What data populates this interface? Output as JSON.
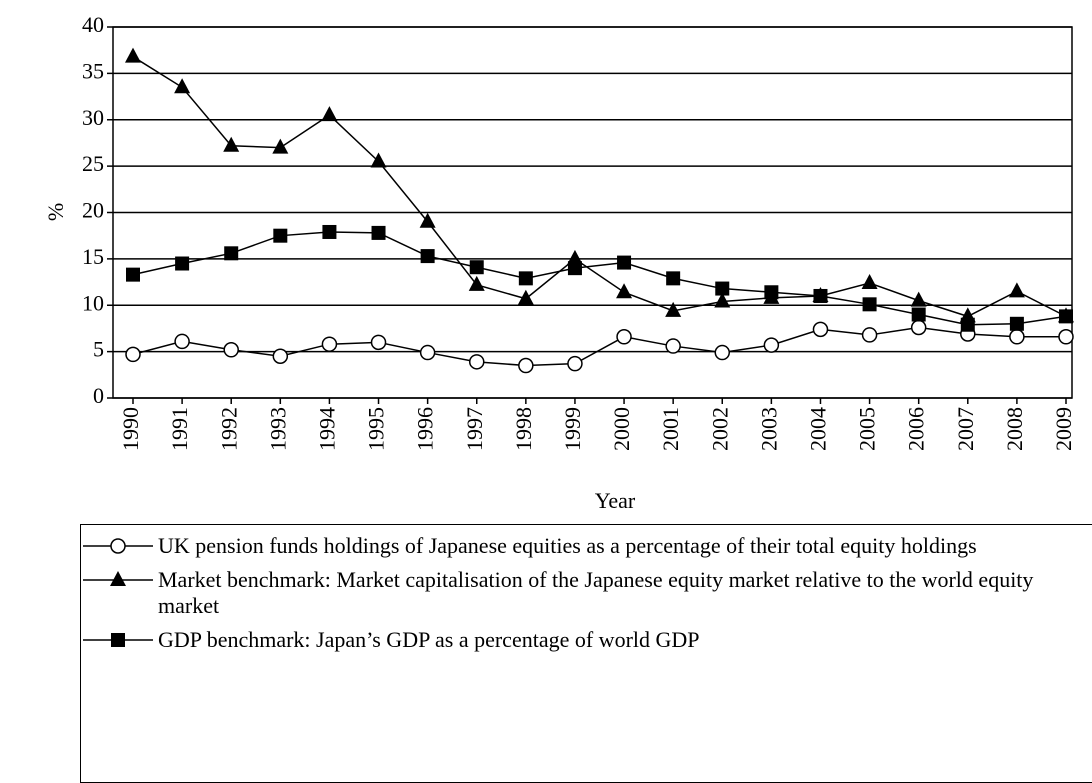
{
  "chart_data": {
    "type": "line",
    "x_label": "Year",
    "y_label": "%",
    "categories": [
      "1990",
      "1991",
      "1992",
      "1993",
      "1994",
      "1995",
      "1996",
      "1997",
      "1998",
      "1999",
      "2000",
      "2001",
      "2002",
      "2003",
      "2004",
      "2005",
      "2006",
      "2007",
      "2008",
      "2009"
    ],
    "ylim": [
      0,
      40
    ],
    "yticks": [
      0,
      5,
      10,
      15,
      20,
      25,
      30,
      35,
      40
    ],
    "grid": true,
    "series": [
      {
        "name": "UK pension funds holdings of Japanese equities as a percentage of their total equity holdings",
        "color": "#000000",
        "marker": "circle",
        "values": [
          4.7,
          6.1,
          5.2,
          4.5,
          5.8,
          6.0,
          4.9,
          3.9,
          3.5,
          3.7,
          6.6,
          5.6,
          4.9,
          5.7,
          7.4,
          6.8,
          7.6,
          6.9,
          6.6,
          6.6
        ]
      },
      {
        "name": "Market benchmark: Market capitalisation of the Japanese equity market relative to the world equity market",
        "color": "#000000",
        "marker": "triangle",
        "values": [
          36.8,
          33.5,
          27.2,
          27.0,
          30.5,
          25.5,
          19.0,
          12.2,
          10.7,
          15.0,
          11.4,
          9.4,
          10.4,
          10.8,
          11.0,
          12.4,
          10.5,
          8.8,
          11.5,
          8.8
        ]
      },
      {
        "name": "GDP benchmark: Japan’s GDP as a percentage of world GDP",
        "color": "#000000",
        "marker": "square",
        "values": [
          13.3,
          14.5,
          15.6,
          17.5,
          17.9,
          17.8,
          15.3,
          14.1,
          12.9,
          14.0,
          14.6,
          12.9,
          11.8,
          11.4,
          11.0,
          10.1,
          9.0,
          7.9,
          8.0,
          8.8
        ]
      }
    ]
  }
}
